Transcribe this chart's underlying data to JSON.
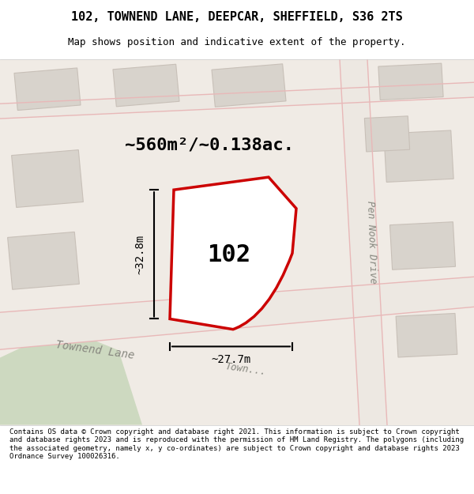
{
  "title": "102, TOWNEND LANE, DEEPCAR, SHEFFIELD, S36 2TS",
  "subtitle": "Map shows position and indicative extent of the property.",
  "area_label": "~560m²/~0.138ac.",
  "property_number": "102",
  "dim_height": "~32.8m",
  "dim_width": "~27.7m",
  "street_townend_lane": "Townend Lane",
  "street_pen_nook": "Pen Nook Drive",
  "bg_color": "#f5f0eb",
  "map_bg": "#f2ede8",
  "footer_text": "Contains OS data © Crown copyright and database right 2021. This information is subject to Crown copyright and database rights 2023 and is reproduced with the permission of HM Land Registry. The polygons (including the associated geometry, namely x, y co-ordinates) are subject to Crown copyright and database rights 2023 Ordnance Survey 100026316.",
  "block_color": "#ddd8d0",
  "road_color": "#f0ebe5",
  "road_line_color": "#e8b8b8",
  "red_outline_color": "#cc0000",
  "green_area_color": "#d4dbc8"
}
